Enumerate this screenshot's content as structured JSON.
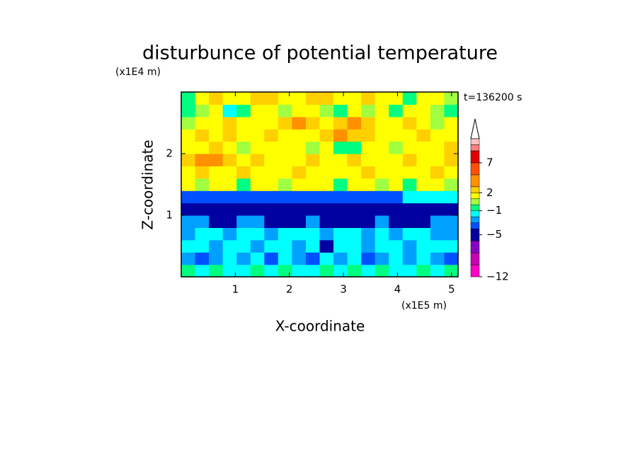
{
  "chart_data": {
    "type": "contour",
    "title": "disturbunce of potential temperature",
    "y_unit": "(x1E4 m)",
    "x_unit": "(x1E5 m)",
    "time_label": "t=136200 s",
    "xlabel": "X-coordinate",
    "ylabel": "Z-coordinate",
    "xlim": [
      0,
      5.12
    ],
    "ylim": [
      0,
      3
    ],
    "xticks": [
      1,
      2,
      3,
      4,
      5
    ],
    "yticks": [
      1,
      2
    ],
    "x": [
      0.128,
      0.384,
      0.64,
      0.896,
      1.152,
      1.408,
      1.664,
      1.92,
      2.176,
      2.432,
      2.688,
      2.944,
      3.2,
      3.456,
      3.712,
      3.968,
      4.224,
      4.48,
      4.736,
      4.992
    ],
    "y": [
      0.1,
      0.3,
      0.5,
      0.7,
      0.9,
      1.1,
      1.3,
      1.5,
      1.7,
      1.9,
      2.1,
      2.3,
      2.5,
      2.7,
      2.9
    ],
    "z": [
      [
        -0.5,
        -1.5,
        -0.5,
        -1.5,
        -1.5,
        -0.5,
        -1.5,
        -0.5,
        -1.5,
        -1.5,
        -0.5,
        -1.5,
        -0.5,
        -1.5,
        -0.5,
        -1.5,
        -1.5,
        -0.5,
        -1.5,
        -0.5
      ],
      [
        -2.5,
        -3.5,
        -2.5,
        -1.5,
        -2.5,
        -1.5,
        -3.5,
        -1.5,
        -2.5,
        -3.5,
        -1.5,
        -2.5,
        -1.5,
        -3.5,
        -2.5,
        -1.5,
        -2.5,
        -1.5,
        -2.5,
        -3.5
      ],
      [
        -1.5,
        -1.5,
        -2.5,
        -1.5,
        -1.5,
        -2.5,
        -1.5,
        -1.5,
        -2.5,
        -1.5,
        -4.5,
        -1.5,
        -1.5,
        -2.5,
        -1.5,
        -1.5,
        -2.5,
        -1.5,
        -1.5,
        -1.5
      ],
      [
        -2.5,
        -1.5,
        -1.5,
        -2.5,
        -1.5,
        -1.5,
        -2.5,
        -1.5,
        -1.5,
        -1.5,
        -2.5,
        -1.5,
        -1.5,
        -2.5,
        -1.5,
        -2.5,
        -1.5,
        -1.5,
        -2.5,
        -2.5
      ],
      [
        -2.5,
        -2.5,
        -4.5,
        -4.5,
        -2.5,
        -2.5,
        -4.5,
        -4.5,
        -4.5,
        -2.5,
        -4.5,
        -4.5,
        -4.5,
        -4.5,
        -2.5,
        -4.5,
        -4.5,
        -4.5,
        -2.5,
        -2.5
      ],
      [
        -4.5,
        -4.5,
        -4.5,
        -4.5,
        -4.5,
        -4.5,
        -4.5,
        -4.5,
        -4.5,
        -4.5,
        -4.5,
        -4.5,
        -4.5,
        -4.5,
        -4.5,
        -4.5,
        -4.5,
        -4.5,
        -4.5,
        -4.5
      ],
      [
        -3.5,
        -3.5,
        -3.5,
        -3.5,
        -3.5,
        -3.5,
        -3.5,
        -3.5,
        -3.5,
        -3.5,
        -3.5,
        -3.5,
        -3.5,
        -3.5,
        -3.5,
        -3.5,
        -1.5,
        -1.5,
        -1.5,
        -1.5
      ],
      [
        1.5,
        0.5,
        1.5,
        1.5,
        -0.5,
        1.5,
        1.5,
        0.5,
        1.5,
        1.5,
        1.5,
        -0.5,
        1.5,
        1.5,
        0.5,
        1.5,
        -0.5,
        1.5,
        1.5,
        0.5
      ],
      [
        1.5,
        2.5,
        1.5,
        1.5,
        2.5,
        1.5,
        1.5,
        1.5,
        2.5,
        1.5,
        1.5,
        1.5,
        1.5,
        2.5,
        1.5,
        1.5,
        1.5,
        1.5,
        2.5,
        1.5
      ],
      [
        2.5,
        4,
        4,
        2.5,
        1.5,
        2.5,
        1.5,
        1.5,
        1.5,
        2.5,
        1.5,
        1.5,
        2.5,
        1.5,
        1.5,
        1.5,
        2.5,
        1.5,
        1.5,
        2.5
      ],
      [
        1.5,
        1.5,
        2.5,
        1.5,
        0.5,
        1.5,
        1.5,
        1.5,
        1.5,
        0.5,
        1.5,
        -0.5,
        -0.5,
        1.5,
        1.5,
        0.5,
        1.5,
        1.5,
        1.5,
        2.5
      ],
      [
        1.5,
        2.5,
        1.5,
        2.5,
        1.5,
        1.5,
        2.5,
        1.5,
        1.5,
        1.5,
        2.5,
        4,
        2.5,
        2.5,
        1.5,
        1.5,
        1.5,
        2.5,
        1.5,
        1.5
      ],
      [
        0.5,
        1.5,
        1.5,
        2.5,
        1.5,
        1.5,
        1.5,
        2.5,
        4,
        2.5,
        1.5,
        2.5,
        4,
        2.5,
        1.5,
        1.5,
        2.5,
        1.5,
        0.5,
        1.5
      ],
      [
        -0.5,
        0.5,
        1.5,
        -1.5,
        -0.5,
        1.5,
        1.5,
        0.5,
        1.5,
        1.5,
        0.5,
        -0.5,
        1.5,
        0.5,
        1.5,
        -0.5,
        1.5,
        1.5,
        0.5,
        -0.5
      ],
      [
        -0.5,
        1.5,
        2.5,
        1.5,
        1.5,
        2.5,
        2.5,
        1.5,
        1.5,
        2.5,
        2.5,
        1.5,
        1.5,
        2.5,
        1.5,
        1.5,
        -0.5,
        1.5,
        1.5,
        0.5
      ]
    ],
    "colorbar": {
      "levels": [
        -12,
        -10,
        -8,
        -6,
        -4,
        -3,
        -2,
        -1,
        0,
        1,
        2,
        3,
        5,
        7,
        9,
        10,
        11
      ],
      "colors": [
        "#ff00c8",
        "#c800b4",
        "#8c00c8",
        "#0000a0",
        "#0050ff",
        "#00a0ff",
        "#00ffff",
        "#00ff80",
        "#a0ff40",
        "#ffff00",
        "#ffd000",
        "#ff9000",
        "#ff5000",
        "#e00000",
        "#ff8080",
        "#ffc0c0"
      ],
      "ticks": [
        {
          "value": -12,
          "label": "−12"
        },
        {
          "value": -5,
          "label": "−5"
        },
        {
          "value": -1,
          "label": "−1"
        },
        2,
        7
      ]
    }
  }
}
